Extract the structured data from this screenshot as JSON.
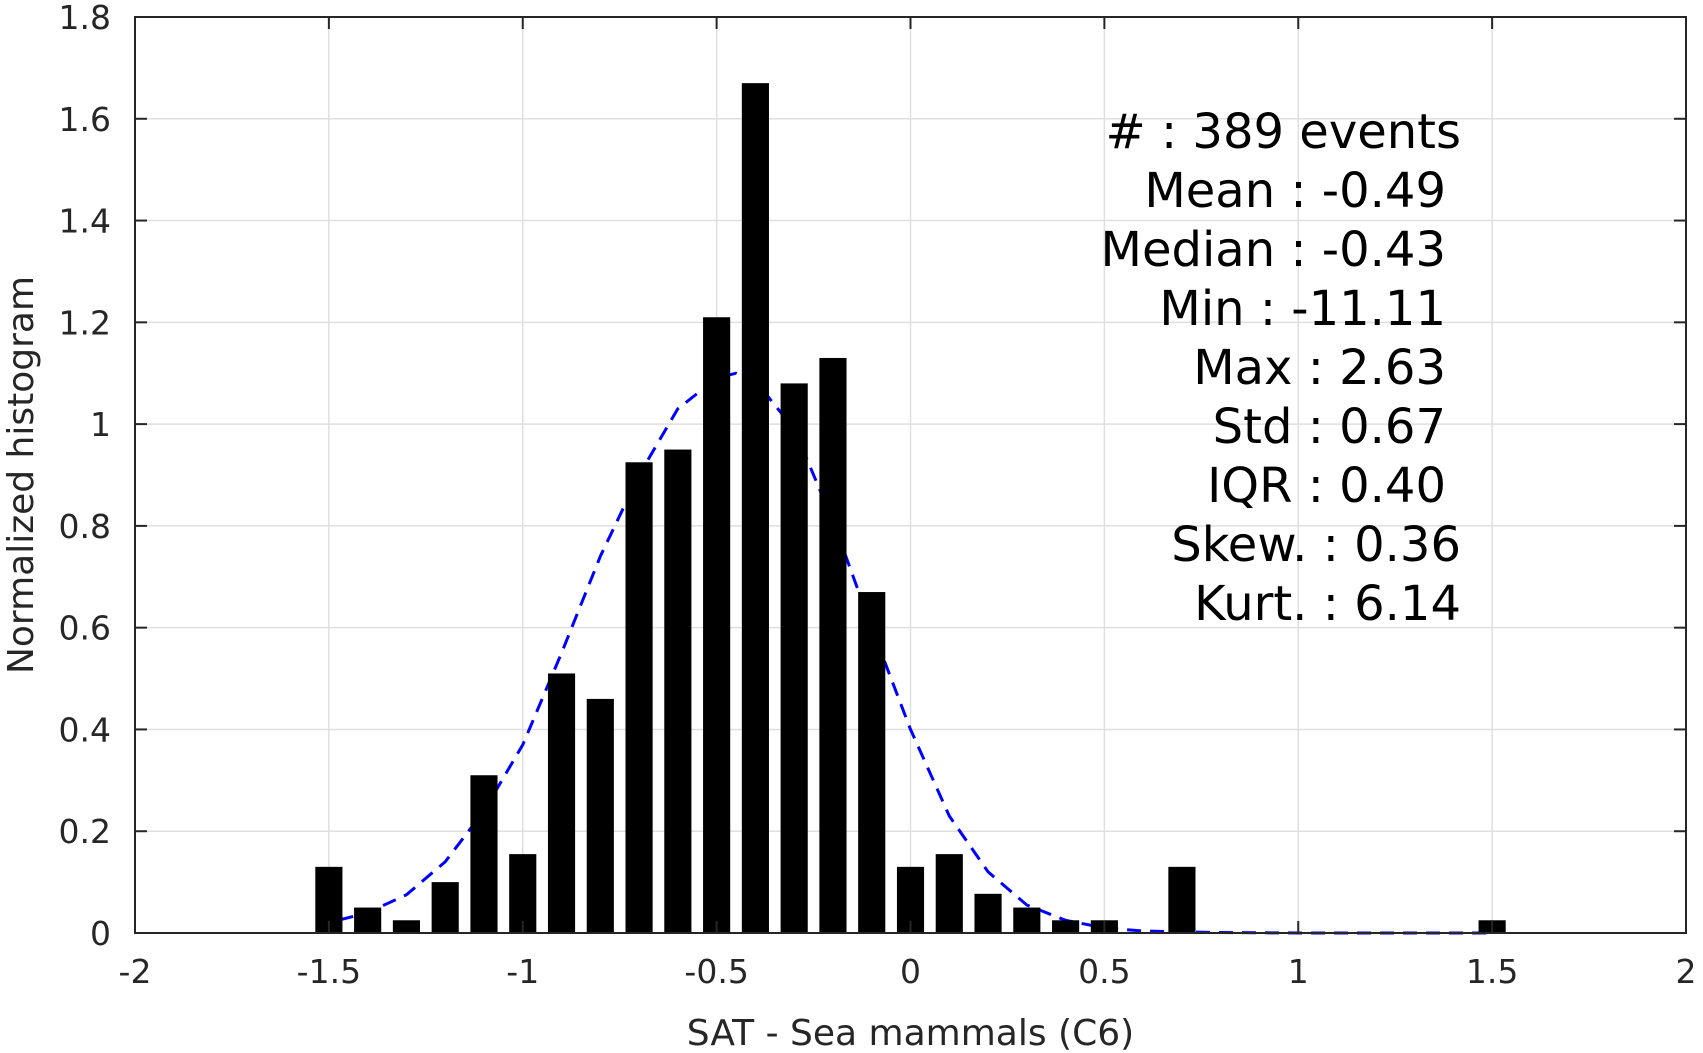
{
  "chart_data": {
    "type": "bar",
    "xlabel": "SAT - Sea mammals (C6)",
    "ylabel": "Normalized histogram",
    "xlim": [
      -2,
      2
    ],
    "ylim": [
      0,
      1.8
    ],
    "grid": true,
    "x_ticks": [
      -2,
      -1.5,
      -1,
      -0.5,
      0,
      0.5,
      1,
      1.5,
      2
    ],
    "x_tick_labels": [
      "-2",
      "-1.5",
      "-1",
      "-0.5",
      "0",
      "0.5",
      "1",
      "1.5",
      "2"
    ],
    "y_ticks": [
      0,
      0.2,
      0.4,
      0.6,
      0.8,
      1,
      1.2,
      1.4,
      1.6,
      1.8
    ],
    "y_tick_labels": [
      "0",
      "0.2",
      "0.4",
      "0.6",
      "0.8",
      "1",
      "1.2",
      "1.4",
      "1.6",
      "1.8"
    ],
    "bar_width": 0.07,
    "bars": {
      "x": [
        -1.5,
        -1.4,
        -1.3,
        -1.2,
        -1.1,
        -1.0,
        -0.9,
        -0.8,
        -0.7,
        -0.6,
        -0.5,
        -0.4,
        -0.3,
        -0.2,
        -0.1,
        0.0,
        0.1,
        0.2,
        0.3,
        0.4,
        0.5,
        0.7,
        1.5
      ],
      "values": [
        0.13,
        0.05,
        0.025,
        0.1,
        0.31,
        0.155,
        0.51,
        0.46,
        0.925,
        0.95,
        1.21,
        1.67,
        1.08,
        1.13,
        0.67,
        0.13,
        0.155,
        0.077,
        0.05,
        0.025,
        0.025,
        0.13,
        0.025
      ],
      "color": "#000000"
    },
    "fit_curve": {
      "style": "dashed",
      "color": "#0000ff",
      "x": [
        -1.53,
        -1.45,
        -1.4,
        -1.3,
        -1.2,
        -1.1,
        -1.0,
        -0.9,
        -0.8,
        -0.7,
        -0.6,
        -0.5,
        -0.45,
        -0.4,
        -0.3,
        -0.2,
        -0.1,
        0.0,
        0.1,
        0.2,
        0.3,
        0.4,
        0.5,
        0.6,
        0.7,
        0.8,
        1.0,
        1.2,
        1.4,
        1.5
      ],
      "y": [
        0.015,
        0.03,
        0.04,
        0.075,
        0.14,
        0.24,
        0.37,
        0.55,
        0.74,
        0.9,
        1.03,
        1.09,
        1.1,
        1.085,
        0.99,
        0.81,
        0.6,
        0.4,
        0.23,
        0.12,
        0.055,
        0.025,
        0.01,
        0.004,
        0.002,
        0.001,
        0.0,
        0.0,
        0.0,
        0.0
      ]
    },
    "annotations": [
      {
        "text": "#  : 389 events",
        "anchor": "end",
        "line": 0,
        "x_offset": 1
      },
      {
        "text": "Mean : -0.49",
        "anchor": "end",
        "line": 1,
        "x_offset": 0
      },
      {
        "text": "Median : -0.43",
        "anchor": "end",
        "line": 2,
        "x_offset": 0
      },
      {
        "text": "Min : -11.11",
        "anchor": "end",
        "line": 3,
        "x_offset": 0
      },
      {
        "text": "Max : 2.63",
        "anchor": "end",
        "line": 4,
        "x_offset": 0
      },
      {
        "text": "Std : 0.67",
        "anchor": "end",
        "line": 5,
        "x_offset": 0
      },
      {
        "text": "IQR : 0.40",
        "anchor": "end",
        "line": 6,
        "x_offset": 0
      },
      {
        "text": "Skew. : 0.36",
        "anchor": "end",
        "line": 7,
        "x_offset": 1
      },
      {
        "text": "Kurt. : 6.14",
        "anchor": "end",
        "line": 8,
        "x_offset": 1
      }
    ]
  }
}
